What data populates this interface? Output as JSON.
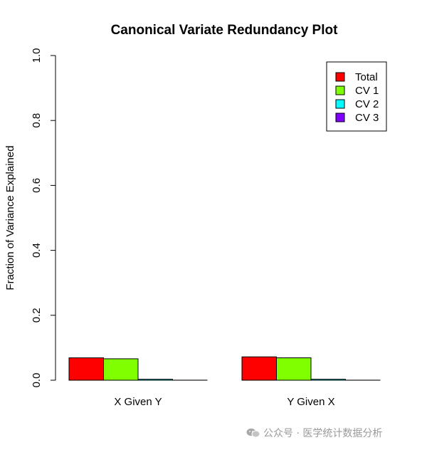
{
  "chart_data": {
    "type": "bar",
    "title": "Canonical Variate Redundancy Plot",
    "xlabel": "",
    "ylabel": "Fraction of Variance Explained",
    "ylim": [
      0,
      1
    ],
    "yticks": [
      "0.0",
      "0.2",
      "0.4",
      "0.6",
      "0.8",
      "1.0"
    ],
    "categories": [
      "X Given Y",
      "Y Given X"
    ],
    "series": [
      {
        "name": "Total",
        "color": "#ff0000",
        "values": [
          0.069,
          0.072
        ]
      },
      {
        "name": "CV 1",
        "color": "#80ff00",
        "values": [
          0.066,
          0.069
        ]
      },
      {
        "name": "CV 2",
        "color": "#00ffff",
        "values": [
          0.003,
          0.003
        ]
      },
      {
        "name": "CV 3",
        "color": "#8000ff",
        "values": [
          0.0002,
          0.0002
        ]
      }
    ],
    "legend_position": "top-right",
    "grid": false
  },
  "watermark": {
    "text": "公众号 · 医学统计数据分析",
    "icon": "wechat-icon"
  }
}
